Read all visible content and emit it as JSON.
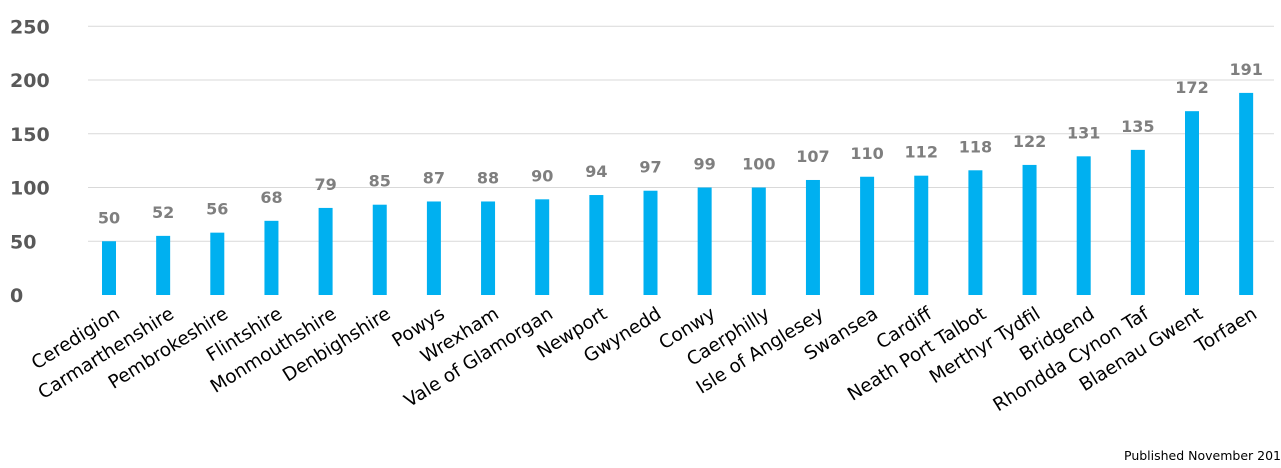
{
  "chart_data": {
    "type": "bar",
    "categories": [
      "Ceredigion",
      "Carmarthenshire",
      "Pembrokeshire",
      "Flintshire",
      "Monmouthshire",
      "Denbighshire",
      "Powys",
      "Wrexham",
      "Vale of Glamorgan",
      "Newport",
      "Gwynedd",
      "Conwy",
      "Caerphilly",
      "Isle of Anglesey",
      "Swansea",
      "Cardiff",
      "Neath Port Talbot",
      "Merthyr Tydfil",
      "Bridgend",
      "Rhondda Cynon Taf",
      "Blaenau Gwent",
      "Torfaen"
    ],
    "values": [
      50,
      52,
      56,
      68,
      79,
      85,
      87,
      88,
      90,
      94,
      97,
      99,
      100,
      107,
      110,
      112,
      118,
      122,
      131,
      135,
      172,
      191
    ],
    "bar_heights": [
      50,
      55,
      58,
      69,
      81,
      84,
      87,
      87,
      89,
      93,
      97,
      100,
      100,
      107,
      110,
      111,
      116,
      121,
      129,
      135,
      171,
      188
    ],
    "ylim": [
      0,
      250
    ],
    "yticks": [
      0,
      50,
      100,
      150,
      200,
      250
    ],
    "grid": true,
    "bar_color": "#00b0f0"
  },
  "footer": {
    "published": "Published November 201"
  }
}
